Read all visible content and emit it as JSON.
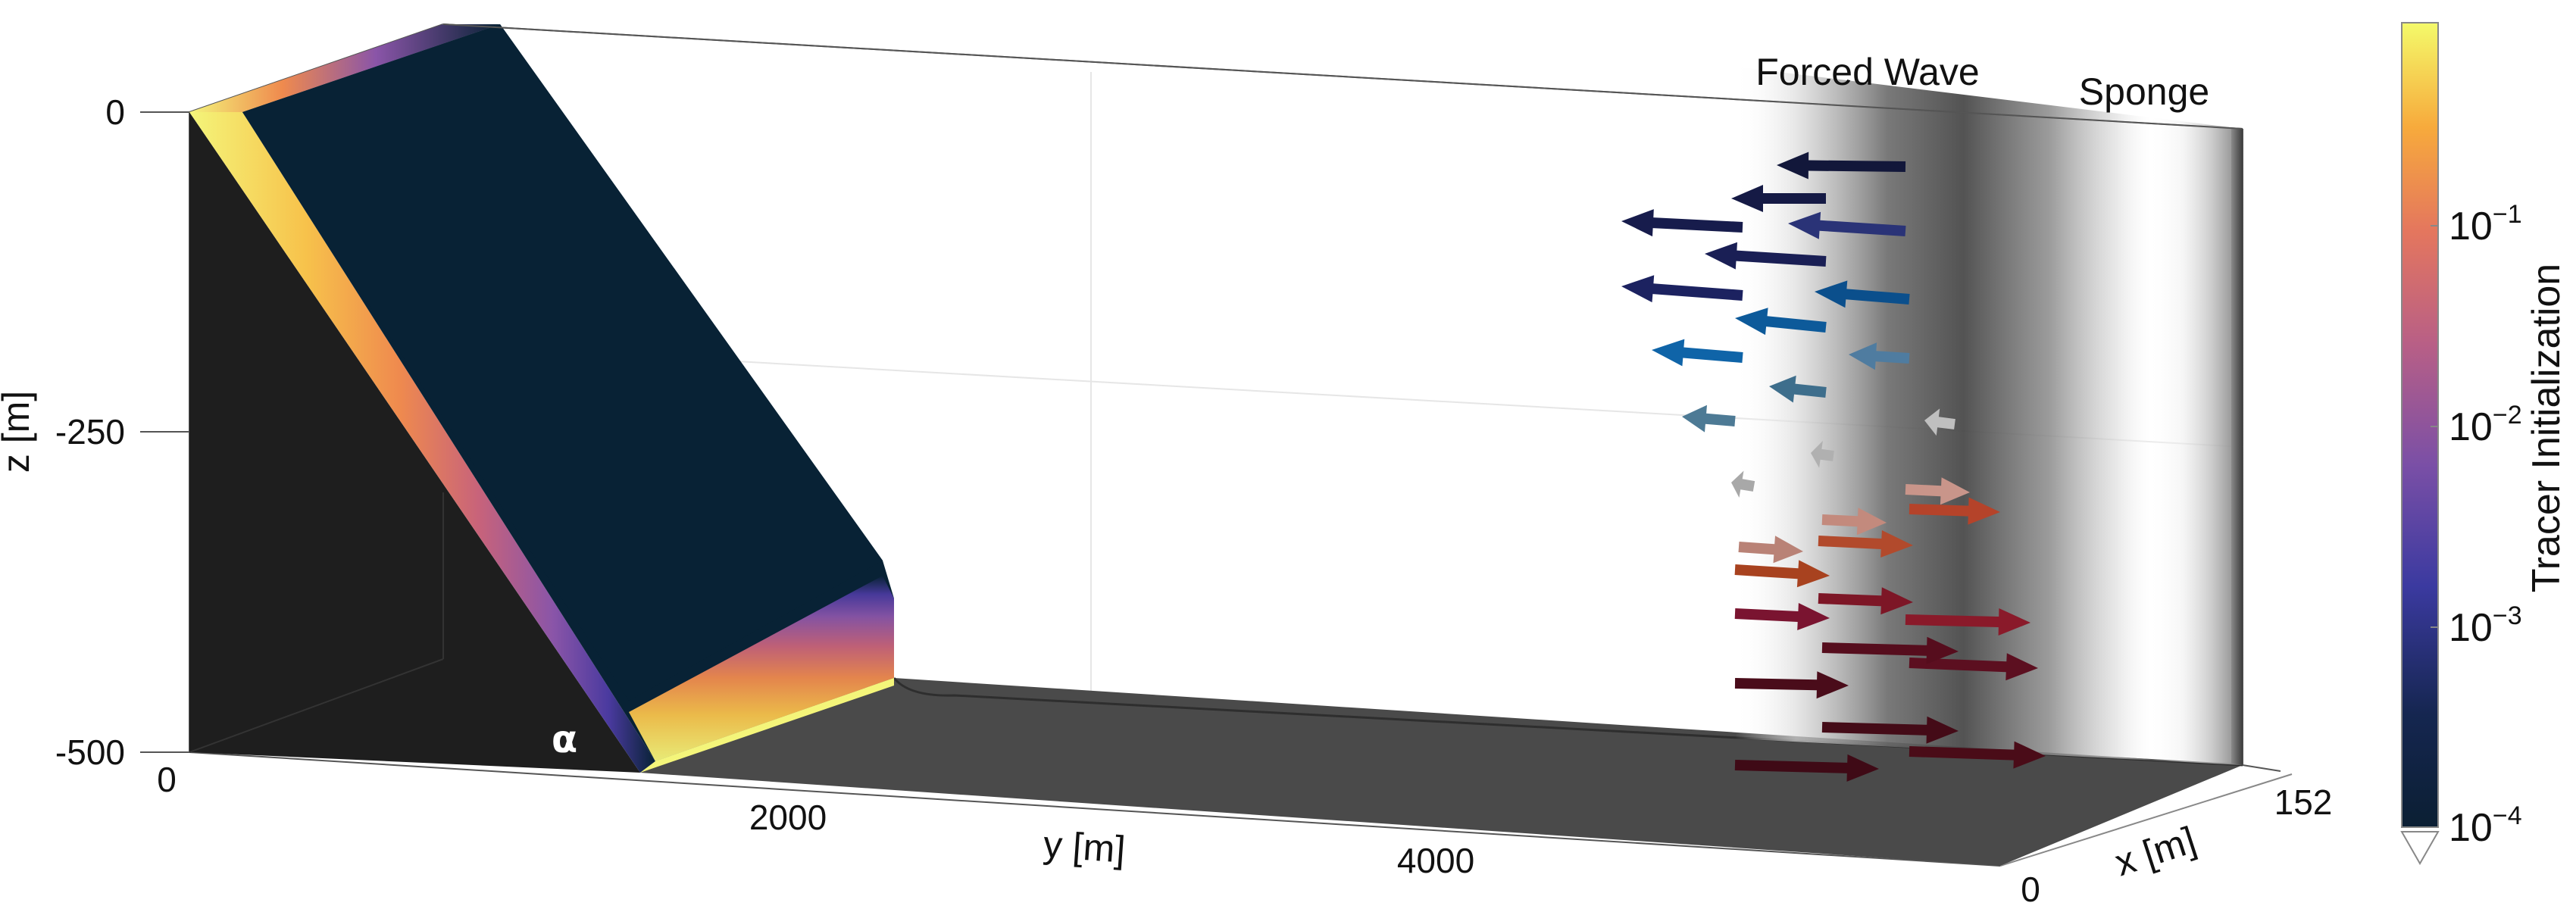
{
  "labels": {
    "forced_wave": "Forced Wave",
    "sponge": "Sponge",
    "alpha": "α",
    "z_axis": "z [m]",
    "y_axis": "y [m]",
    "x_axis": "x [m]"
  },
  "z_ticks": [
    "0",
    "-250",
    "-500"
  ],
  "y_ticks": [
    "0",
    "2000",
    "4000"
  ],
  "x_ticks": [
    "0",
    "152"
  ],
  "colorbar": {
    "title": "Tracer Initialization",
    "ticks": [
      {
        "mantissa": "10",
        "exponent": "−1"
      },
      {
        "mantissa": "10",
        "exponent": "−2"
      },
      {
        "mantissa": "10",
        "exponent": "−3"
      },
      {
        "mantissa": "10",
        "exponent": "−4"
      }
    ],
    "colors": [
      "#0b1f33",
      "#1b2a6b",
      "#4a3a9f",
      "#8a55a8",
      "#c8637a",
      "#ef8a4e",
      "#f7c24b",
      "#f4f57a"
    ]
  },
  "colors": {
    "slope_top": "#082235",
    "slope_side": "#1e1e1e",
    "floor": "#4a4a4a",
    "tracer_band": [
      "#f4f57a",
      "#f7c24b",
      "#ef8a4e",
      "#c8637a",
      "#8a55a8",
      "#4a3a9f",
      "#082235"
    ]
  },
  "arrows": [
    {
      "dir": "left",
      "color": "#12173a"
    },
    {
      "dir": "left",
      "color": "#151a45"
    },
    {
      "dir": "left",
      "color": "#171c4c"
    },
    {
      "dir": "left",
      "color": "#2a3377"
    },
    {
      "dir": "left",
      "color": "#1a1f55"
    },
    {
      "dir": "left",
      "color": "#1c2260"
    },
    {
      "dir": "left",
      "color": "#0b4f8c"
    },
    {
      "dir": "left",
      "color": "#0d5a9a"
    },
    {
      "dir": "left",
      "color": "#0f64a8"
    },
    {
      "dir": "left",
      "color": "#4f7ca0"
    },
    {
      "dir": "left",
      "color": "#3e6e8c"
    },
    {
      "dir": "left",
      "color": "#4d7a95"
    },
    {
      "dir": "left",
      "color": "#bfbfbf"
    },
    {
      "dir": "left",
      "color": "#b0b0b0"
    },
    {
      "dir": "left",
      "color": "#a8a8a8"
    },
    {
      "dir": "right",
      "color": "#c9958a"
    },
    {
      "dir": "right",
      "color": "#c38a7d"
    },
    {
      "dir": "right",
      "color": "#b98276"
    },
    {
      "dir": "right",
      "color": "#b5432a"
    },
    {
      "dir": "right",
      "color": "#b24a2c"
    },
    {
      "dir": "right",
      "color": "#a8421f"
    },
    {
      "dir": "right",
      "color": "#8a1a2a"
    },
    {
      "dir": "right",
      "color": "#7d1626"
    },
    {
      "dir": "right",
      "color": "#7a1430"
    },
    {
      "dir": "right",
      "color": "#5c0f20"
    },
    {
      "dir": "right",
      "color": "#560d1d"
    },
    {
      "dir": "right",
      "color": "#4a0c1a"
    },
    {
      "dir": "right",
      "color": "#4a0c18"
    },
    {
      "dir": "right",
      "color": "#440b17"
    },
    {
      "dir": "right",
      "color": "#3f0a16"
    }
  ]
}
